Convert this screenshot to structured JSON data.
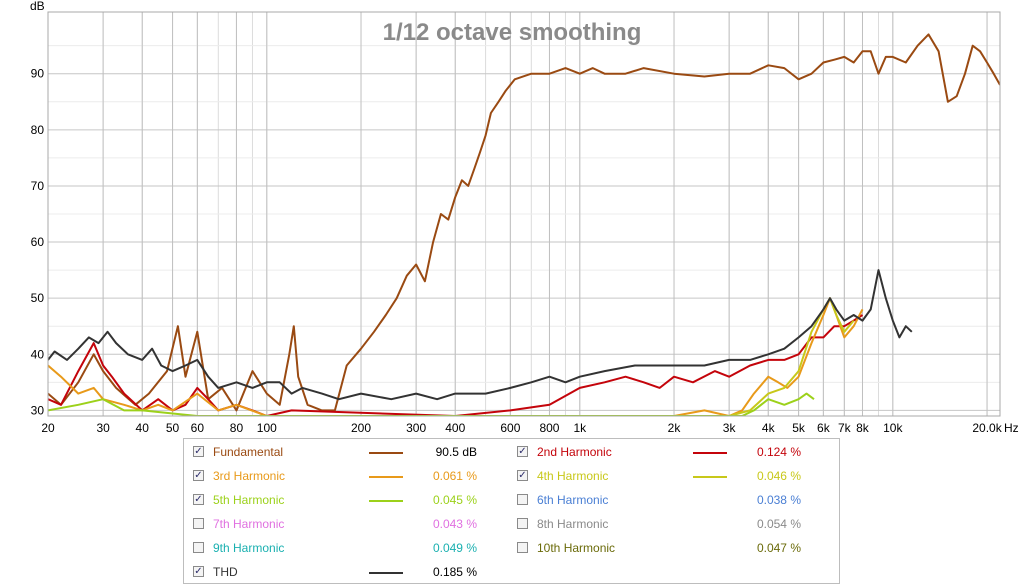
{
  "chart_data": {
    "type": "line",
    "title": "1/12 octave smoothing",
    "ylabel": "dB",
    "x_unit": "Hz",
    "x_scale": "log",
    "xlim": [
      20,
      22000
    ],
    "ylim": [
      29,
      101
    ],
    "grid": true,
    "y_ticks": [
      "30",
      "40",
      "50",
      "60",
      "70",
      "80",
      "90"
    ],
    "x_ticks": [
      "20",
      "30",
      "40",
      "50",
      "60",
      "80",
      "100",
      "200",
      "300",
      "400",
      "600",
      "800",
      "1k",
      "2k",
      "3k",
      "4k",
      "5k",
      "6k",
      "7k",
      "8k",
      "10k",
      "20.0k"
    ],
    "series": [
      {
        "name": "Fundamental",
        "color": "#9a4a12",
        "points": [
          [
            20,
            33
          ],
          [
            22,
            31
          ],
          [
            25,
            35
          ],
          [
            28,
            40
          ],
          [
            30,
            37
          ],
          [
            33,
            34
          ],
          [
            38,
            31
          ],
          [
            42,
            33
          ],
          [
            48,
            37
          ],
          [
            52,
            45
          ],
          [
            55,
            36
          ],
          [
            60,
            44
          ],
          [
            65,
            32
          ],
          [
            72,
            34
          ],
          [
            80,
            30
          ],
          [
            90,
            37
          ],
          [
            100,
            33
          ],
          [
            110,
            31
          ],
          [
            118,
            40
          ],
          [
            122,
            45
          ],
          [
            126,
            36
          ],
          [
            135,
            31
          ],
          [
            150,
            30
          ],
          [
            165,
            30
          ],
          [
            180,
            38
          ],
          [
            200,
            41
          ],
          [
            220,
            44
          ],
          [
            240,
            47
          ],
          [
            260,
            50
          ],
          [
            280,
            54
          ],
          [
            300,
            56
          ],
          [
            320,
            53
          ],
          [
            340,
            60
          ],
          [
            360,
            65
          ],
          [
            380,
            64
          ],
          [
            400,
            68
          ],
          [
            420,
            71
          ],
          [
            440,
            70
          ],
          [
            460,
            73
          ],
          [
            480,
            76
          ],
          [
            500,
            79
          ],
          [
            520,
            83
          ],
          [
            550,
            85
          ],
          [
            580,
            87
          ],
          [
            620,
            89
          ],
          [
            700,
            90
          ],
          [
            800,
            90
          ],
          [
            900,
            91
          ],
          [
            1000,
            90
          ],
          [
            1100,
            91
          ],
          [
            1200,
            90
          ],
          [
            1400,
            90
          ],
          [
            1600,
            91
          ],
          [
            2000,
            90
          ],
          [
            2500,
            89.5
          ],
          [
            3000,
            90
          ],
          [
            3500,
            90
          ],
          [
            4000,
            91.5
          ],
          [
            4500,
            91
          ],
          [
            5000,
            89
          ],
          [
            5500,
            90
          ],
          [
            6000,
            92
          ],
          [
            6500,
            92.5
          ],
          [
            7000,
            93
          ],
          [
            7500,
            92
          ],
          [
            8000,
            94
          ],
          [
            8500,
            94
          ],
          [
            9000,
            90
          ],
          [
            9500,
            93
          ],
          [
            10000,
            93
          ],
          [
            11000,
            92
          ],
          [
            12000,
            95
          ],
          [
            13000,
            97
          ],
          [
            14000,
            94
          ],
          [
            15000,
            85
          ],
          [
            16000,
            86
          ],
          [
            17000,
            90
          ],
          [
            18000,
            95
          ],
          [
            19000,
            94
          ],
          [
            20000,
            92
          ],
          [
            21000,
            90
          ],
          [
            22000,
            88
          ]
        ]
      },
      {
        "name": "2nd Harmonic",
        "color": "#c4040b",
        "points": [
          [
            20,
            32
          ],
          [
            22,
            31
          ],
          [
            25,
            37
          ],
          [
            28,
            42
          ],
          [
            30,
            38
          ],
          [
            32,
            36
          ],
          [
            35,
            33
          ],
          [
            40,
            30
          ],
          [
            45,
            32
          ],
          [
            50,
            30
          ],
          [
            55,
            31
          ],
          [
            60,
            34
          ],
          [
            65,
            32
          ],
          [
            70,
            30
          ],
          [
            80,
            31
          ],
          [
            90,
            30
          ],
          [
            100,
            29
          ],
          [
            120,
            30
          ],
          [
            400,
            29
          ],
          [
            600,
            30
          ],
          [
            800,
            31
          ],
          [
            1000,
            34
          ],
          [
            1200,
            35
          ],
          [
            1400,
            36
          ],
          [
            1600,
            35
          ],
          [
            1800,
            34
          ],
          [
            2000,
            36
          ],
          [
            2300,
            35
          ],
          [
            2700,
            37
          ],
          [
            3000,
            36
          ],
          [
            3500,
            38
          ],
          [
            4000,
            39
          ],
          [
            4500,
            39
          ],
          [
            5000,
            40
          ],
          [
            5500,
            43
          ],
          [
            6000,
            43
          ],
          [
            6500,
            45
          ],
          [
            7000,
            45
          ],
          [
            7500,
            46
          ],
          [
            8000,
            47
          ]
        ]
      },
      {
        "name": "3rd Harmonic",
        "color": "#e89a1a",
        "points": [
          [
            20,
            38
          ],
          [
            22,
            36
          ],
          [
            25,
            33
          ],
          [
            28,
            34
          ],
          [
            30,
            32
          ],
          [
            35,
            31
          ],
          [
            40,
            30
          ],
          [
            45,
            31
          ],
          [
            50,
            30
          ],
          [
            60,
            33
          ],
          [
            70,
            30
          ],
          [
            80,
            31
          ],
          [
            100,
            29
          ],
          [
            2000,
            29
          ],
          [
            2500,
            30
          ],
          [
            3000,
            29
          ],
          [
            3300,
            30
          ],
          [
            3600,
            33
          ],
          [
            4000,
            36
          ],
          [
            4300,
            35
          ],
          [
            4600,
            34
          ],
          [
            5000,
            36
          ],
          [
            5500,
            42
          ],
          [
            6000,
            47
          ],
          [
            6300,
            50
          ],
          [
            6600,
            47
          ],
          [
            7000,
            43
          ],
          [
            7500,
            45
          ],
          [
            8000,
            48
          ]
        ]
      },
      {
        "name": "4th Harmonic",
        "color": "#c8c81a",
        "points": [
          [
            3000,
            29
          ],
          [
            3500,
            30
          ],
          [
            4000,
            33
          ],
          [
            4500,
            34
          ],
          [
            5000,
            37
          ],
          [
            5500,
            44
          ],
          [
            6000,
            48
          ],
          [
            6300,
            50
          ],
          [
            6600,
            47
          ],
          [
            7000,
            44
          ],
          [
            7500,
            46
          ]
        ]
      },
      {
        "name": "5th Harmonic",
        "color": "#9cd11a",
        "points": [
          [
            20,
            30
          ],
          [
            25,
            31
          ],
          [
            30,
            32
          ],
          [
            35,
            30
          ],
          [
            40,
            30
          ],
          [
            60,
            29
          ],
          [
            3300,
            29
          ],
          [
            3600,
            30
          ],
          [
            4000,
            32
          ],
          [
            4500,
            31
          ],
          [
            5000,
            32
          ],
          [
            5300,
            33
          ],
          [
            5600,
            32
          ]
        ]
      },
      {
        "name": "THD",
        "color": "#333333",
        "points": [
          [
            20,
            39
          ],
          [
            21,
            40.5
          ],
          [
            23,
            39
          ],
          [
            25,
            41
          ],
          [
            27,
            43
          ],
          [
            29,
            42
          ],
          [
            31,
            44
          ],
          [
            33,
            42
          ],
          [
            36,
            40
          ],
          [
            40,
            39
          ],
          [
            43,
            41
          ],
          [
            46,
            38
          ],
          [
            50,
            37
          ],
          [
            55,
            38
          ],
          [
            60,
            39
          ],
          [
            65,
            36
          ],
          [
            70,
            34
          ],
          [
            80,
            35
          ],
          [
            90,
            34
          ],
          [
            100,
            35
          ],
          [
            110,
            35
          ],
          [
            120,
            33
          ],
          [
            130,
            34
          ],
          [
            150,
            33
          ],
          [
            170,
            32
          ],
          [
            200,
            33
          ],
          [
            250,
            32
          ],
          [
            300,
            33
          ],
          [
            350,
            32
          ],
          [
            400,
            33
          ],
          [
            500,
            33
          ],
          [
            600,
            34
          ],
          [
            700,
            35
          ],
          [
            800,
            36
          ],
          [
            900,
            35
          ],
          [
            1000,
            36
          ],
          [
            1200,
            37
          ],
          [
            1500,
            38
          ],
          [
            2000,
            38
          ],
          [
            2500,
            38
          ],
          [
            3000,
            39
          ],
          [
            3500,
            39
          ],
          [
            4000,
            40
          ],
          [
            4500,
            41
          ],
          [
            5000,
            43
          ],
          [
            5500,
            45
          ],
          [
            6000,
            48
          ],
          [
            6300,
            50
          ],
          [
            6600,
            48
          ],
          [
            7000,
            46
          ],
          [
            7500,
            47
          ],
          [
            8000,
            46
          ],
          [
            8500,
            48
          ],
          [
            9000,
            55
          ],
          [
            9500,
            50
          ],
          [
            10000,
            46
          ],
          [
            10500,
            43
          ],
          [
            11000,
            45
          ],
          [
            11500,
            44
          ]
        ]
      }
    ]
  },
  "legend": {
    "rows": [
      {
        "checked": true,
        "checkmark": "✓",
        "name": "Fundamental",
        "color": "#9a4a12",
        "swatch": true,
        "value": "90.5 dB"
      },
      {
        "checked": true,
        "checkmark": "✓",
        "name": "2nd Harmonic",
        "color": "#c4040b",
        "swatch": true,
        "value": "0.124 %"
      },
      {
        "checked": true,
        "checkmark": "✓",
        "name": "3rd Harmonic",
        "color": "#e89a1a",
        "swatch": true,
        "value": "0.061 %"
      },
      {
        "checked": true,
        "checkmark": "✓",
        "name": "4th Harmonic",
        "color": "#c8c81a",
        "swatch": true,
        "value": "0.046 %"
      },
      {
        "checked": true,
        "checkmark": "✓",
        "name": "5th Harmonic",
        "color": "#9cd11a",
        "swatch": true,
        "value": "0.045 %"
      },
      {
        "checked": false,
        "checkmark": "",
        "name": "6th Harmonic",
        "color": "#4a7fd4",
        "swatch": false,
        "value": "0.038 %"
      },
      {
        "checked": false,
        "checkmark": "",
        "name": "7th Harmonic",
        "color": "#e070e0",
        "swatch": false,
        "value": "0.043 %"
      },
      {
        "checked": false,
        "checkmark": "",
        "name": "8th Harmonic",
        "color": "#8a8a8a",
        "swatch": false,
        "value": "0.054 %"
      },
      {
        "checked": false,
        "checkmark": "",
        "name": "9th Harmonic",
        "color": "#1ab0b0",
        "swatch": false,
        "value": "0.049 %"
      },
      {
        "checked": false,
        "checkmark": "",
        "name": "10th Harmonic",
        "color": "#6b6b0a",
        "swatch": false,
        "value": "0.047 %"
      },
      {
        "checked": true,
        "checkmark": "✓",
        "name": "THD",
        "color": "#333333",
        "swatch": true,
        "value": "0.185 %"
      }
    ]
  }
}
